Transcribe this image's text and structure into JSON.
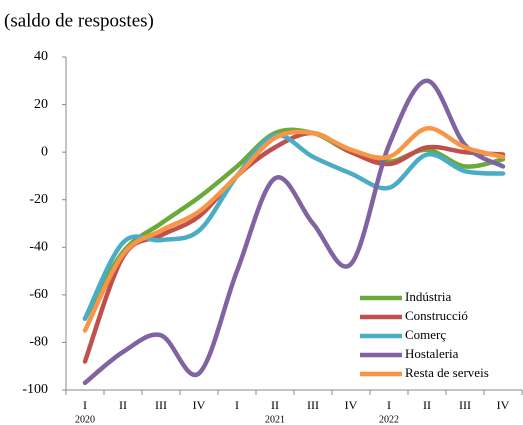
{
  "chart_data": {
    "type": "line",
    "title": "(saldo de respostes)",
    "categories": [
      "I",
      "II",
      "III",
      "IV",
      "I",
      "II",
      "III",
      "IV",
      "I",
      "II",
      "III",
      "IV"
    ],
    "year_labels": [
      "2020",
      null,
      null,
      null,
      null,
      "2021",
      null,
      null,
      "2022",
      null,
      null,
      null
    ],
    "series": [
      {
        "name": "Indústria",
        "color": "#6aaa3a",
        "values": [
          -70,
          -42,
          -30,
          -19,
          -6,
          8,
          8,
          0,
          -4,
          1,
          -6,
          -3
        ]
      },
      {
        "name": "Construcció",
        "color": "#c0504d",
        "values": [
          -88,
          -44,
          -35,
          -27,
          -10,
          2,
          8,
          0,
          -5,
          2,
          0,
          -1
        ]
      },
      {
        "name": "Comerç",
        "color": "#4bacc6",
        "values": [
          -70,
          -38,
          -37,
          -33,
          -10,
          7,
          -2,
          -9,
          -15,
          -1,
          -8,
          -9
        ]
      },
      {
        "name": "Hostaleria",
        "color": "#8064a2",
        "values": [
          -97,
          -84,
          -77,
          -93,
          -50,
          -11,
          -30,
          -47,
          3,
          30,
          3,
          -6
        ]
      },
      {
        "name": "Resta de serveis",
        "color": "#f79646",
        "values": [
          -75,
          -43,
          -33,
          -25,
          -10,
          6,
          8,
          1,
          -2,
          10,
          2,
          -2
        ]
      }
    ],
    "ylim": [
      -100,
      40
    ],
    "yticks": [
      -100,
      -80,
      -60,
      -40,
      -20,
      0,
      20,
      40
    ]
  }
}
